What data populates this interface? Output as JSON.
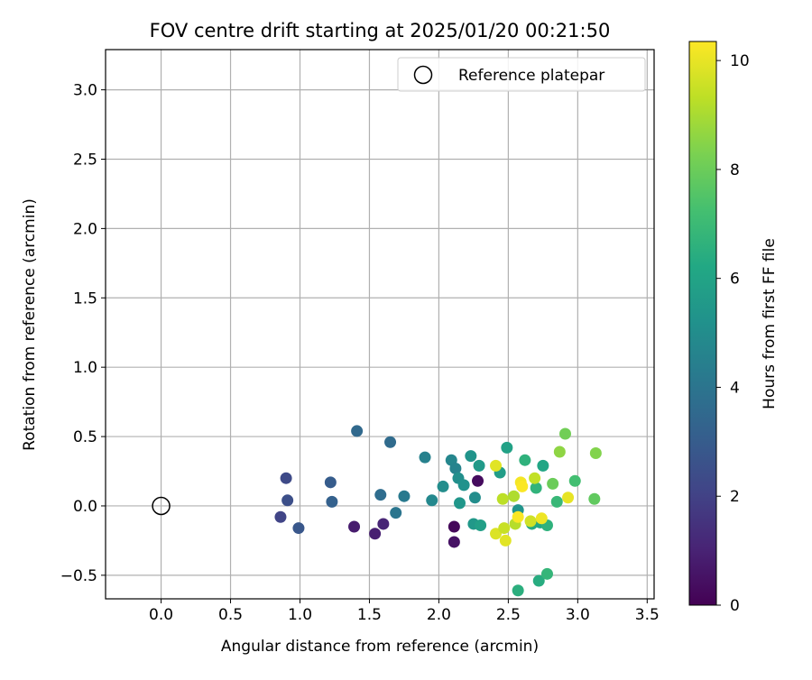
{
  "chart_data": {
    "type": "scatter",
    "title": "FOV centre drift starting at 2025/01/20 00:21:50",
    "xlabel": "Angular distance from reference (arcmin)",
    "ylabel": "Rotation from reference (arcmin)",
    "xlim": [
      -0.4,
      3.55
    ],
    "ylim": [
      -0.67,
      3.29
    ],
    "xticks": [
      0.0,
      0.5,
      1.0,
      1.5,
      2.0,
      2.5,
      3.0,
      3.5
    ],
    "yticks": [
      -0.5,
      0.0,
      0.5,
      1.0,
      1.5,
      2.0,
      2.5,
      3.0
    ],
    "xtick_labels": [
      "0.0",
      "0.5",
      "1.0",
      "1.5",
      "2.0",
      "2.5",
      "3.0",
      "3.5"
    ],
    "ytick_labels": [
      "−0.5",
      "0.0",
      "0.5",
      "1.0",
      "1.5",
      "2.0",
      "2.5",
      "3.0"
    ],
    "grid": true,
    "colormap": "viridis",
    "legend": {
      "placement": "top-right",
      "entries": [
        {
          "label": "Reference platepar",
          "marker": "open-circle",
          "color": "#000000"
        }
      ]
    },
    "reference_point": {
      "x": 0.0,
      "y": 0.0
    },
    "colorbar": {
      "label": "Hours from first FF file",
      "min": 0,
      "max": 10.35,
      "ticks": [
        0,
        2,
        4,
        6,
        8,
        10
      ],
      "tick_labels": [
        "0",
        "2",
        "4",
        "6",
        "8",
        "10"
      ]
    },
    "points": [
      {
        "x": 2.28,
        "y": 0.18,
        "c": 0.3
      },
      {
        "x": 2.11,
        "y": -0.15,
        "c": 0.2
      },
      {
        "x": 2.11,
        "y": -0.26,
        "c": 0.5
      },
      {
        "x": 1.39,
        "y": -0.15,
        "c": 0.8
      },
      {
        "x": 1.54,
        "y": -0.2,
        "c": 0.9
      },
      {
        "x": 1.6,
        "y": -0.13,
        "c": 1.1
      },
      {
        "x": 0.86,
        "y": -0.08,
        "c": 2.1
      },
      {
        "x": 0.9,
        "y": 0.2,
        "c": 2.3
      },
      {
        "x": 0.91,
        "y": 0.04,
        "c": 2.5
      },
      {
        "x": 0.99,
        "y": -0.16,
        "c": 2.8
      },
      {
        "x": 1.22,
        "y": 0.17,
        "c": 3.0
      },
      {
        "x": 1.23,
        "y": 0.03,
        "c": 3.2
      },
      {
        "x": 1.41,
        "y": 0.54,
        "c": 3.5
      },
      {
        "x": 1.58,
        "y": 0.08,
        "c": 3.7
      },
      {
        "x": 1.65,
        "y": 0.46,
        "c": 3.6
      },
      {
        "x": 1.69,
        "y": -0.05,
        "c": 4.0
      },
      {
        "x": 1.75,
        "y": 0.07,
        "c": 4.2
      },
      {
        "x": 1.9,
        "y": 0.35,
        "c": 4.5
      },
      {
        "x": 1.95,
        "y": 0.04,
        "c": 4.8
      },
      {
        "x": 2.03,
        "y": 0.14,
        "c": 5.0
      },
      {
        "x": 2.09,
        "y": 0.33,
        "c": 4.7
      },
      {
        "x": 2.12,
        "y": 0.27,
        "c": 4.6
      },
      {
        "x": 2.14,
        "y": 0.2,
        "c": 5.1
      },
      {
        "x": 2.15,
        "y": 0.02,
        "c": 5.4
      },
      {
        "x": 2.18,
        "y": 0.15,
        "c": 5.2
      },
      {
        "x": 2.23,
        "y": 0.36,
        "c": 5.3
      },
      {
        "x": 2.25,
        "y": -0.13,
        "c": 5.5
      },
      {
        "x": 2.26,
        "y": 0.06,
        "c": 5.0
      },
      {
        "x": 2.29,
        "y": 0.29,
        "c": 5.6
      },
      {
        "x": 2.3,
        "y": -0.14,
        "c": 5.8
      },
      {
        "x": 2.44,
        "y": 0.24,
        "c": 5.7
      },
      {
        "x": 2.49,
        "y": 0.42,
        "c": 5.9
      },
      {
        "x": 2.57,
        "y": -0.03,
        "c": 5.3
      },
      {
        "x": 2.57,
        "y": -0.61,
        "c": 6.5
      },
      {
        "x": 2.62,
        "y": 0.33,
        "c": 6.6
      },
      {
        "x": 2.67,
        "y": -0.13,
        "c": 6.3
      },
      {
        "x": 2.7,
        "y": 0.13,
        "c": 6.7
      },
      {
        "x": 2.72,
        "y": -0.54,
        "c": 6.4
      },
      {
        "x": 2.73,
        "y": -0.12,
        "c": 6.2
      },
      {
        "x": 2.75,
        "y": 0.29,
        "c": 6.1
      },
      {
        "x": 2.78,
        "y": -0.14,
        "c": 6.6
      },
      {
        "x": 2.78,
        "y": -0.49,
        "c": 6.8
      },
      {
        "x": 2.82,
        "y": 0.16,
        "c": 8.0
      },
      {
        "x": 2.85,
        "y": 0.03,
        "c": 6.9
      },
      {
        "x": 2.87,
        "y": 0.39,
        "c": 8.6
      },
      {
        "x": 2.91,
        "y": 0.52,
        "c": 8.1
      },
      {
        "x": 2.98,
        "y": 0.18,
        "c": 7.2
      },
      {
        "x": 3.12,
        "y": 0.05,
        "c": 7.8
      },
      {
        "x": 3.13,
        "y": 0.38,
        "c": 8.4
      },
      {
        "x": 2.41,
        "y": -0.2,
        "c": 9.8
      },
      {
        "x": 2.41,
        "y": 0.29,
        "c": 9.9
      },
      {
        "x": 2.46,
        "y": 0.05,
        "c": 9.3
      },
      {
        "x": 2.47,
        "y": -0.16,
        "c": 9.5
      },
      {
        "x": 2.48,
        "y": -0.25,
        "c": 9.9
      },
      {
        "x": 2.54,
        "y": 0.07,
        "c": 9.1
      },
      {
        "x": 2.55,
        "y": -0.13,
        "c": 9.2
      },
      {
        "x": 2.57,
        "y": -0.08,
        "c": 10.3
      },
      {
        "x": 2.59,
        "y": 0.17,
        "c": 10.2
      },
      {
        "x": 2.6,
        "y": 0.14,
        "c": 10.3
      },
      {
        "x": 2.66,
        "y": -0.11,
        "c": 9.6
      },
      {
        "x": 2.69,
        "y": 0.2,
        "c": 9.4
      },
      {
        "x": 2.74,
        "y": -0.09,
        "c": 10.1
      },
      {
        "x": 2.93,
        "y": 0.06,
        "c": 10.0
      }
    ]
  }
}
